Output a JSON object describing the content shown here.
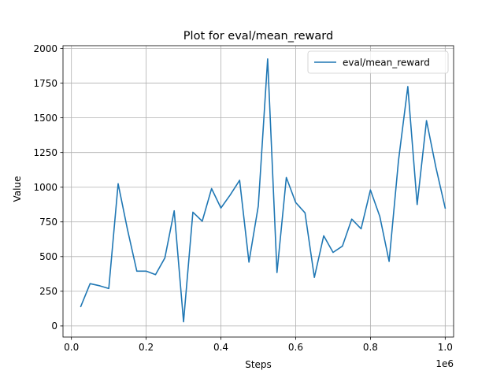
{
  "chart_data": {
    "type": "line",
    "title": "Plot for eval/mean_reward",
    "xlabel": "Steps",
    "ylabel": "Value",
    "x_offset_label": "1e6",
    "xlim": [
      -0.0225,
      1.0225
    ],
    "ylim": [
      -80,
      2020
    ],
    "x_ticks": [
      0.0,
      0.2,
      0.4,
      0.6,
      0.8,
      1.0
    ],
    "x_tick_labels": [
      "0.0",
      "0.2",
      "0.4",
      "0.6",
      "0.8",
      "1.0"
    ],
    "y_ticks": [
      0,
      250,
      500,
      750,
      1000,
      1250,
      1500,
      1750,
      2000
    ],
    "y_tick_labels": [
      "0",
      "250",
      "500",
      "750",
      "1000",
      "1250",
      "1500",
      "1750",
      "2000"
    ],
    "grid": true,
    "legend_position": "top-right",
    "series": [
      {
        "name": "eval/mean_reward",
        "color": "#1f77b4",
        "x": [
          0.025,
          0.05,
          0.075,
          0.1,
          0.125,
          0.15,
          0.175,
          0.2,
          0.225,
          0.25,
          0.275,
          0.3,
          0.325,
          0.35,
          0.375,
          0.4,
          0.425,
          0.45,
          0.475,
          0.5,
          0.525,
          0.55,
          0.575,
          0.6,
          0.625,
          0.65,
          0.675,
          0.7,
          0.725,
          0.75,
          0.775,
          0.8,
          0.825,
          0.85,
          0.875,
          0.9,
          0.925,
          0.95,
          0.975,
          1.0
        ],
        "y": [
          140,
          305,
          290,
          270,
          1025,
          695,
          395,
          395,
          370,
          490,
          830,
          30,
          820,
          755,
          990,
          850,
          945,
          1050,
          460,
          865,
          1925,
          385,
          1070,
          890,
          815,
          350,
          650,
          530,
          575,
          770,
          700,
          980,
          790,
          465,
          1190,
          1725,
          875,
          1480,
          1145,
          850
        ]
      }
    ]
  }
}
